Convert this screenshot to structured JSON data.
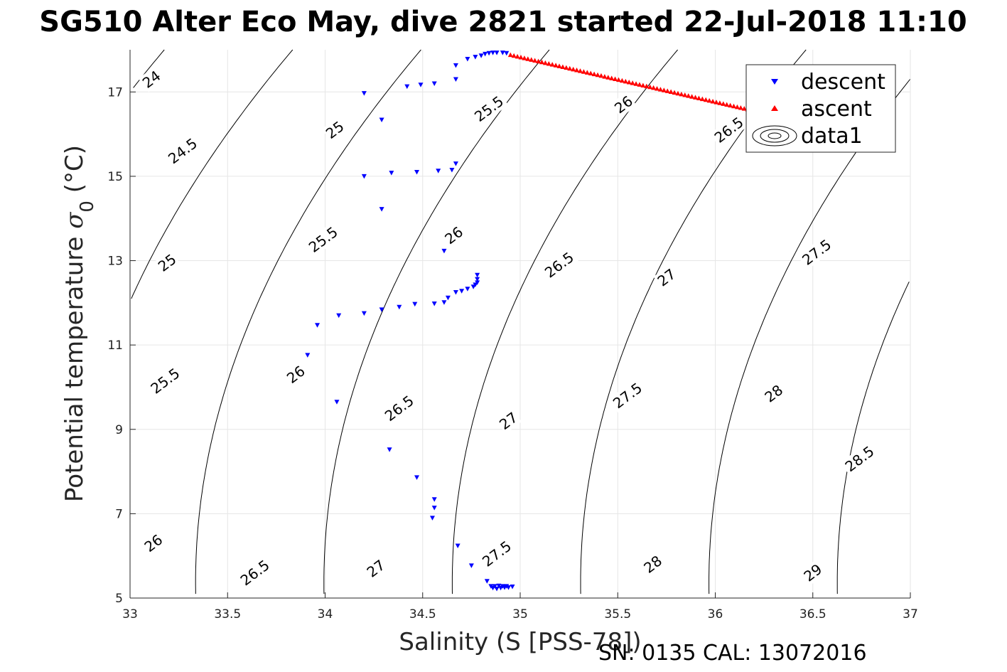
{
  "chart_data": {
    "type": "scatter",
    "title": "SG510 Alter Eco May, dive 2821 started 22-Jul-2018 11:10",
    "xlabel": "Salinity (S [PSS-78])",
    "ylabel_main": "Potential temperature ",
    "ylabel_sym": "σ",
    "ylabel_sub": "0",
    "ylabel_unit": " (°C)",
    "footer": "SN: 0135  CAL: 13072016",
    "xlim": [
      33,
      37
    ],
    "ylim": [
      5,
      18
    ],
    "grid": true,
    "legend_position": "top-right",
    "x_ticks": [
      33,
      33.5,
      34,
      34.5,
      35,
      35.5,
      36,
      36.5,
      37
    ],
    "y_ticks": [
      5,
      7,
      9,
      11,
      13,
      15,
      17
    ],
    "x_tick_labels": [
      "33",
      "33.5",
      "34",
      "34.5",
      "35",
      "35.5",
      "36",
      "36.5",
      "37"
    ],
    "y_tick_labels": [
      "5",
      "7",
      "9",
      "11",
      "13",
      "15",
      "17"
    ],
    "contour_levels": [
      24,
      24.5,
      25,
      25.5,
      26,
      26.5,
      27,
      27.5,
      28,
      28.5,
      29
    ],
    "contour_labels": [
      {
        "text": "24",
        "s": 33.11,
        "t": 17.3
      },
      {
        "text": "24.5",
        "s": 33.27,
        "t": 15.6
      },
      {
        "text": "25",
        "s": 34.05,
        "t": 16.1
      },
      {
        "text": "25",
        "s": 33.19,
        "t": 12.95
      },
      {
        "text": "25.5",
        "s": 34.84,
        "t": 16.6
      },
      {
        "text": "25.5",
        "s": 33.99,
        "t": 13.5
      },
      {
        "text": "25.5",
        "s": 33.18,
        "t": 10.15
      },
      {
        "text": "26",
        "s": 35.53,
        "t": 16.7
      },
      {
        "text": "26",
        "s": 34.66,
        "t": 13.6
      },
      {
        "text": "26",
        "s": 33.85,
        "t": 10.3
      },
      {
        "text": "26",
        "s": 33.12,
        "t": 6.3
      },
      {
        "text": "26.5",
        "s": 36.07,
        "t": 16.1
      },
      {
        "text": "26.5",
        "s": 35.2,
        "t": 12.9
      },
      {
        "text": "26.5",
        "s": 34.38,
        "t": 9.5
      },
      {
        "text": "26.5",
        "s": 33.64,
        "t": 5.6
      },
      {
        "text": "27",
        "s": 35.75,
        "t": 12.6
      },
      {
        "text": "27",
        "s": 34.94,
        "t": 9.2
      },
      {
        "text": "27",
        "s": 34.26,
        "t": 5.7
      },
      {
        "text": "27.5",
        "s": 36.52,
        "t": 13.2
      },
      {
        "text": "27.5",
        "s": 35.55,
        "t": 9.8
      },
      {
        "text": "27.5",
        "s": 34.88,
        "t": 6.05
      },
      {
        "text": "28",
        "s": 36.3,
        "t": 9.85
      },
      {
        "text": "28",
        "s": 35.68,
        "t": 5.8
      },
      {
        "text": "28.5",
        "s": 36.74,
        "t": 8.3
      },
      {
        "text": "29",
        "s": 36.5,
        "t": 5.6
      }
    ],
    "series": [
      {
        "name": "descent",
        "marker": "triangle-down",
        "color": "#0000ff",
        "points": [
          [
            34.93,
            17.92
          ],
          [
            34.91,
            17.93
          ],
          [
            34.88,
            17.93
          ],
          [
            34.86,
            17.93
          ],
          [
            34.84,
            17.92
          ],
          [
            34.82,
            17.9
          ],
          [
            34.8,
            17.86
          ],
          [
            34.77,
            17.83
          ],
          [
            34.73,
            17.78
          ],
          [
            34.67,
            17.63
          ],
          [
            34.67,
            17.3
          ],
          [
            34.56,
            17.2
          ],
          [
            34.49,
            17.17
          ],
          [
            34.42,
            17.13
          ],
          [
            34.2,
            16.97
          ],
          [
            34.29,
            16.34
          ],
          [
            34.67,
            15.3
          ],
          [
            34.65,
            15.15
          ],
          [
            34.58,
            15.13
          ],
          [
            34.47,
            15.1
          ],
          [
            34.34,
            15.08
          ],
          [
            34.2,
            15.0
          ],
          [
            34.29,
            14.22
          ],
          [
            34.61,
            13.23
          ],
          [
            34.78,
            12.66
          ],
          [
            34.78,
            12.56
          ],
          [
            34.78,
            12.48
          ],
          [
            34.77,
            12.43
          ],
          [
            34.76,
            12.38
          ],
          [
            34.73,
            12.33
          ],
          [
            34.7,
            12.28
          ],
          [
            34.67,
            12.25
          ],
          [
            34.63,
            12.12
          ],
          [
            34.61,
            12.01
          ],
          [
            34.56,
            11.98
          ],
          [
            34.46,
            11.97
          ],
          [
            34.38,
            11.9
          ],
          [
            34.29,
            11.84
          ],
          [
            34.2,
            11.75
          ],
          [
            34.07,
            11.7
          ],
          [
            33.96,
            11.47
          ],
          [
            33.91,
            10.76
          ],
          [
            34.06,
            9.65
          ],
          [
            34.33,
            8.52
          ],
          [
            34.47,
            7.86
          ],
          [
            34.56,
            7.34
          ],
          [
            34.56,
            7.14
          ],
          [
            34.55,
            6.9
          ],
          [
            34.68,
            6.24
          ],
          [
            34.75,
            5.77
          ],
          [
            34.83,
            5.4
          ],
          [
            34.85,
            5.28
          ],
          [
            34.86,
            5.24
          ],
          [
            34.87,
            5.28
          ],
          [
            34.88,
            5.22
          ],
          [
            34.89,
            5.29
          ],
          [
            34.9,
            5.24
          ],
          [
            34.91,
            5.28
          ],
          [
            34.92,
            5.25
          ],
          [
            34.93,
            5.28
          ],
          [
            34.94,
            5.25
          ],
          [
            34.96,
            5.27
          ]
        ]
      },
      {
        "name": "ascent",
        "marker": "triangle-up",
        "color": "#ff0000",
        "points_start": [
          34.95,
          17.88
        ],
        "points_end": [
          36.22,
          16.53
        ],
        "count": 72
      }
    ],
    "legend_entries": [
      "descent",
      "ascent",
      "data1"
    ]
  }
}
